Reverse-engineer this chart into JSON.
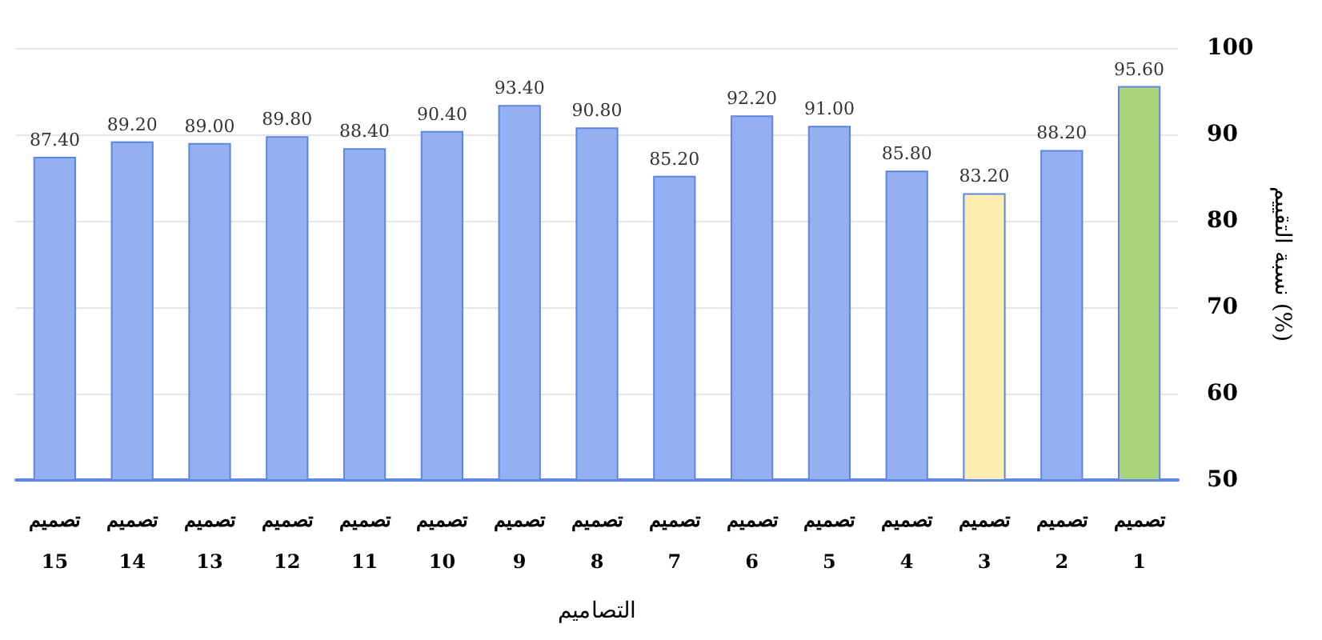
{
  "chart_data": {
    "type": "bar",
    "xlabel": "التصاميم",
    "ylabel": "نسبة التقييم (%)",
    "categories": [
      "تصميم\n15",
      "تصميم\n14",
      "تصميم\n13",
      "تصميم\n12",
      "تصميم\n11",
      "تصميم\n10",
      "تصميم\n9",
      "تصميم\n8",
      "تصميم\n7",
      "تصميم\n6",
      "تصميم\n5",
      "تصميم\n4",
      "تصميم\n3",
      "تصميم\n2",
      "تصميم\n1"
    ],
    "values": [
      87.4,
      89.2,
      89.0,
      89.8,
      88.4,
      90.4,
      93.4,
      90.8,
      85.2,
      92.2,
      91.0,
      85.8,
      83.2,
      88.2,
      95.6
    ],
    "value_labels": [
      "87.40",
      "89.20",
      "89.00",
      "89.80",
      "88.40",
      "90.40",
      "93.40",
      "90.80",
      "85.20",
      "92.20",
      "91.00",
      "85.80",
      "83.20",
      "88.20",
      "95.60"
    ],
    "colors": [
      "#94b0f2",
      "#94b0f2",
      "#94b0f2",
      "#94b0f2",
      "#94b0f2",
      "#94b0f2",
      "#94b0f2",
      "#94b0f2",
      "#94b0f2",
      "#94b0f2",
      "#94b0f2",
      "#94b0f2",
      "#fbeeb0",
      "#94b0f2",
      "#a9d47a"
    ],
    "ylim": [
      50,
      100
    ],
    "yticks": [
      50,
      60,
      70,
      80,
      90,
      100
    ],
    "grid": "y"
  }
}
